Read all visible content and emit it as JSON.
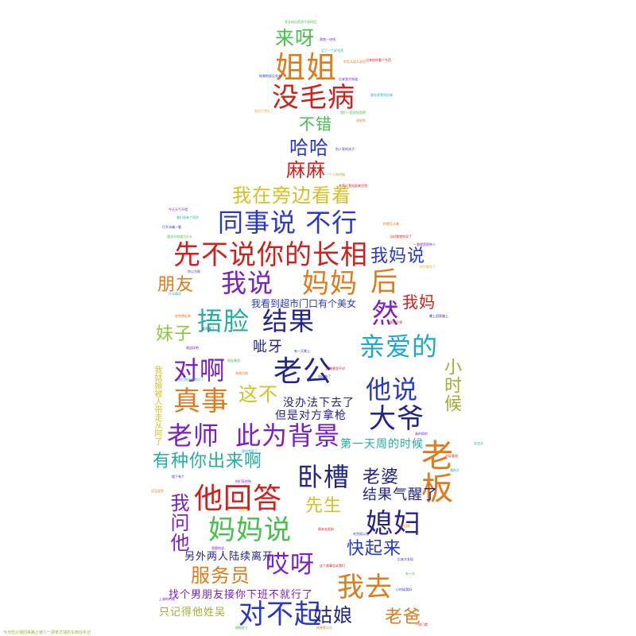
{
  "colors": {
    "orange": "#e07a1a",
    "red": "#d0201c",
    "blue": "#2838c8",
    "navy": "#23238c",
    "purple": "#7a1ec8",
    "green": "#46c04a",
    "lime": "#8cc83c",
    "cyan": "#18a8d4",
    "teal": "#21b0a0",
    "yellow": "#d8c020",
    "olive": "#a0b030"
  },
  "words": {
    "laiya": "来呀",
    "jiejie": "姐姐",
    "meimaobing": "没毛病",
    "bucuo": "不错",
    "haha": "哈哈",
    "mama_lady": "麻麻",
    "woza_pangbian": "我在旁边看着",
    "tongshishuo_buxing": "同事说 不行",
    "xianbushuo": "先不说你的长相",
    "womashuo": "我妈说",
    "pengyou": "朋友",
    "woshuo": "我说",
    "mama": "妈妈",
    "hou": "后",
    "woma": "我妈",
    "wokandao": "我看到超市门口有个美女",
    "wulian": "捂脸",
    "jieguo": "结果",
    "ran": "然",
    "meizi": "妹子",
    "ciya": "呲牙",
    "qinaide": "亲爱的",
    "duia": "对啊",
    "laogong": "老公",
    "xiaoshihou": "小时候",
    "zhenshi": "真事",
    "zhebu": "这不",
    "tashuo": "他说",
    "meibanfa": "没办法下去了",
    "danshi": "但是对方拿枪",
    "daye": "大爷",
    "laoshi": "老师",
    "ciweibeijing": "此为背景",
    "laoban": "老板",
    "wozhanbulu": "我姑娘被人带走从阿了",
    "diyitian": "第一天周的时候",
    "youzhongni": "有种你出来啊",
    "wocao": "卧槽",
    "laopo": "老婆",
    "tahuida": "他回答",
    "jieguoqixing": "结果气醒了",
    "xiansheng": "先生",
    "wowenta": "我问他",
    "xifu": "媳妇",
    "mamashuo": "妈妈说",
    "kuaiqilai": "快起来",
    "lingwailiangren": "另外两人陆续离开",
    "aiya": "哎呀",
    "fuwuyuan": "服务员",
    "woqu": "我去",
    "zhaogenan": "找个男朋友接你下班不就行了",
    "zhijide": "只记得他姓吴",
    "duibuqi": "对不起",
    "guniang": "姑娘",
    "laoba": "老爸",
    "footer_note": "今天吃火锅回来路上被人一把拿过钱的东西在手记"
  },
  "small_words": [
    "家长给自家孩子说的话",
    "我就一块钱",
    "买了一个好东西",
    "你怎么这么说话",
    "过来给你看个东西",
    "结果他说没关系",
    "后来我才知道",
    "我在家等你回来",
    "她说不想去了",
    "我们一起去吃饭吧",
    "说好的",
    "别人家的孩子",
    "一个人的时候",
    "老师让我站起来回答",
    "今天天气不错",
    "我们班有个同学",
    "你猜怎么着",
    "打开冰箱一看",
    "当时我就惊呆了",
    "我也不知道为什么",
    "一看就是那种人",
    "他们都笑了",
    "你以为呢",
    "什么情况",
    "突然想起来",
    "晚上回家路上",
    "我想了想",
    "笑死我了",
    "就这样吧",
    "有一天晚上",
    "朋友圈里",
    "好像哪里不对",
    "然后就没有然后了",
    "我就问他",
    "电话响了",
    "真的假的",
    "不好意思",
    "我也是醉了",
    "楼下有个",
    "他们家的狗",
    "没想到",
    "下班回家",
    "周末去逛街",
    "吃完饭以后",
    "我跟他说",
    "后来才发现",
    "这个故事告诉我们",
    "有一次",
    "小时候我妈",
    "上课的时候",
    "隔壁老王",
    "结果第二天",
    "一进门就",
    "我的天",
    "这也太",
    "还没说完"
  ]
}
